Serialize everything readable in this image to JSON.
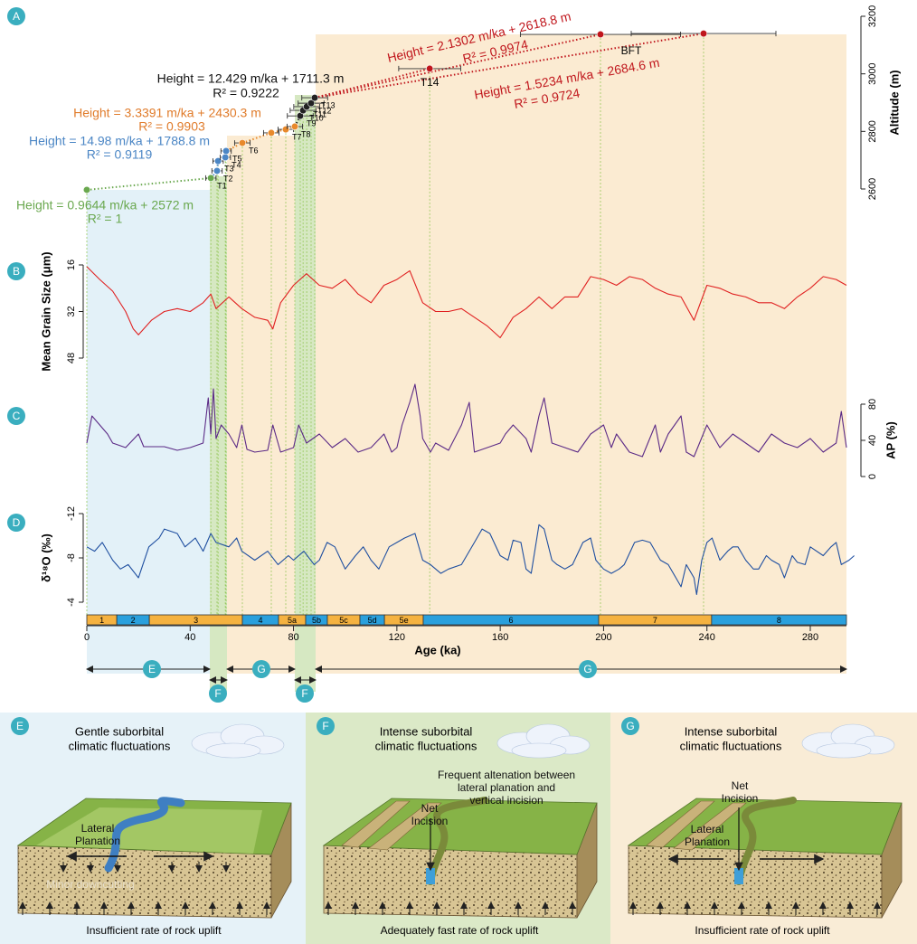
{
  "chart_data": [
    {
      "panel": "A",
      "type": "scatter",
      "xlim": [
        0,
        294
      ],
      "ylim": [
        2600,
        3200
      ],
      "yticks": [
        2600,
        2800,
        3000,
        3200
      ],
      "ylabel": "Altitude (m)",
      "y_axis_side": "right",
      "series": [
        {
          "color": "#6aa84f",
          "x": [
            0,
            48.0
          ],
          "values": [
            2597,
            2638
          ],
          "xerr": [
            null,
            2
          ],
          "labels": [
            null,
            "T1"
          ]
        },
        {
          "color": "#4b86c5",
          "x": [
            50.4,
            50.8,
            53.6,
            53.9
          ],
          "values": [
            2663,
            2697,
            2710,
            2732
          ],
          "xerr": [
            2,
            2,
            2,
            2
          ],
          "labels": [
            "T2",
            "T3",
            "T4",
            "T5"
          ]
        },
        {
          "color": "#e8892c",
          "x": [
            60.2,
            71.4,
            77.0,
            80.5
          ],
          "values": [
            2760,
            2795,
            2807,
            2817
          ],
          "xerr": [
            3,
            3,
            3,
            3
          ],
          "labels": [
            "T6",
            null,
            "T7",
            "T8"
          ]
        },
        {
          "color": "#222222",
          "x": [
            82.6,
            83.7,
            85.1,
            86.8,
            88.2
          ],
          "values": [
            2854,
            2873,
            2886,
            2898,
            2917
          ],
          "xerr": [
            5,
            5,
            5,
            5,
            5
          ],
          "labels": [
            "T9",
            "T10",
            "T11",
            "T12",
            "T13"
          ]
        },
        {
          "color": "#c0161c",
          "x": [
            132.7,
            198.8,
            238.7
          ],
          "values": [
            3018,
            3137,
            3140
          ],
          "xerr": [
            12,
            31,
            28
          ],
          "labels": [
            "T14",
            "BFT",
            null
          ]
        }
      ],
      "annotations": [
        {
          "text": "Height = 2.1302 m/ka + 2618.8 m",
          "r2": "R² = 0.9974",
          "color": "#c0161c"
        },
        {
          "text": "Height = 12.429 m/ka + 1711.3 m",
          "r2": "R² = 0.9222",
          "color": "#111111"
        },
        {
          "text": "Height = 1.5234 m/ka + 2684.6 m",
          "r2": "R² = 0.9724",
          "color": "#c0161c"
        },
        {
          "text": "Height = 3.3391 m/ka + 2430.3 m",
          "r2": "R² = 0.9903",
          "color": "#e07b2a"
        },
        {
          "text": "Height = 14.98 m/ka + 1788.8 m",
          "r2": "R² = 0.9119",
          "color": "#4b86c5"
        },
        {
          "text": "Height = 0.9644 m/ka + 2572 m",
          "r2": "R² = 1",
          "color": "#6aa84f"
        }
      ]
    },
    {
      "panel": "B",
      "type": "line",
      "xlim": [
        0,
        294
      ],
      "ylim": [
        16,
        48
      ],
      "y_inverted": true,
      "yticks": [
        16,
        32,
        48
      ],
      "ylabel": "Mean Grain Size (μm)",
      "y_axis_side": "left",
      "series": [
        {
          "color": "#e02020",
          "x": [
            0,
            5,
            10,
            15,
            18,
            20,
            25,
            30,
            35,
            40,
            45,
            48,
            50,
            55,
            60,
            65,
            70,
            72,
            75,
            80,
            85,
            90,
            95,
            100,
            105,
            110,
            115,
            120,
            125,
            130,
            135,
            140,
            145,
            150,
            155,
            160,
            165,
            170,
            175,
            180,
            185,
            190,
            195,
            200,
            205,
            210,
            215,
            220,
            225,
            230,
            235,
            240,
            245,
            250,
            255,
            260,
            265,
            270,
            275,
            280,
            285,
            290,
            294
          ],
          "values": [
            16.6,
            21,
            25,
            32,
            38,
            40,
            35,
            32,
            31,
            32,
            29,
            26,
            31,
            27,
            31,
            34,
            35,
            38,
            29,
            23,
            19,
            23,
            24,
            21,
            26,
            29,
            23,
            21,
            18,
            29,
            32,
            32,
            31,
            34,
            37,
            41,
            34,
            31,
            27,
            31,
            27,
            27,
            20,
            21,
            23,
            20,
            21,
            24,
            26,
            27,
            35,
            23,
            24,
            26,
            27,
            29,
            29,
            31,
            27,
            24,
            20,
            21,
            23
          ]
        }
      ]
    },
    {
      "panel": "C",
      "type": "line",
      "xlim": [
        0,
        294
      ],
      "ylim": [
        0,
        80
      ],
      "yticks": [
        0,
        40,
        80
      ],
      "ylabel": "AP (%)",
      "y_axis_side": "right",
      "series": [
        {
          "color": "#5b2a86",
          "x": [
            0,
            2,
            5,
            8,
            10,
            15,
            20,
            22,
            25,
            30,
            35,
            40,
            45,
            47,
            48,
            49,
            50,
            52,
            55,
            58,
            60,
            62,
            65,
            70,
            72,
            75,
            80,
            82,
            85,
            90,
            95,
            100,
            105,
            110,
            115,
            118,
            120,
            122,
            125,
            127,
            129,
            130,
            133,
            135,
            140,
            145,
            148,
            150,
            155,
            160,
            162,
            165,
            170,
            172,
            175,
            177,
            180,
            185,
            190,
            195,
            200,
            203,
            205,
            210,
            215,
            220,
            222,
            225,
            230,
            232,
            235,
            240,
            245,
            250,
            255,
            260,
            265,
            270,
            275,
            280,
            285,
            290,
            292,
            294
          ],
          "values": [
            37,
            67,
            57,
            47,
            37,
            32,
            47,
            33,
            33,
            33,
            29,
            32,
            37,
            87,
            47,
            97,
            42,
            57,
            47,
            32,
            57,
            30,
            27,
            29,
            57,
            27,
            32,
            57,
            37,
            47,
            32,
            42,
            27,
            32,
            47,
            27,
            32,
            57,
            82,
            102,
            67,
            42,
            27,
            37,
            29,
            57,
            82,
            27,
            32,
            37,
            47,
            57,
            42,
            27,
            67,
            87,
            37,
            32,
            27,
            47,
            57,
            32,
            47,
            27,
            22,
            57,
            27,
            47,
            67,
            27,
            22,
            57,
            32,
            47,
            37,
            27,
            47,
            37,
            32,
            42,
            27,
            37,
            72,
            32
          ]
        }
      ]
    },
    {
      "panel": "D",
      "type": "line",
      "xlim": [
        0,
        294
      ],
      "ylim": [
        -12,
        -4
      ],
      "y_inverted": true,
      "yticks": [
        -12,
        -8,
        -4
      ],
      "ylabel": "δ¹⁸O (‰)",
      "y_axis_side": "left",
      "series": [
        {
          "color": "#1f4fa0",
          "x": [
            0,
            3,
            6,
            10,
            13,
            16,
            20,
            24,
            28,
            30,
            35,
            38,
            42,
            45,
            48,
            50,
            55,
            58,
            60,
            65,
            70,
            74,
            78,
            80,
            84,
            88,
            90,
            93,
            96,
            100,
            104,
            107,
            110,
            113,
            117,
            120,
            123,
            127,
            130,
            133,
            137,
            140,
            145,
            150,
            153,
            156,
            160,
            163,
            165,
            168,
            170,
            172,
            175,
            177,
            180,
            182,
            185,
            188,
            192,
            195,
            197,
            200,
            203,
            206,
            208,
            212,
            215,
            218,
            222,
            225,
            228,
            230,
            232,
            235,
            236,
            238,
            240,
            242,
            245,
            248,
            250,
            252,
            255,
            258,
            260,
            263,
            265,
            268,
            270,
            273,
            275,
            278,
            280,
            285,
            288,
            290,
            292,
            295,
            297
          ],
          "values": [
            -9.0,
            -8.6,
            -9.4,
            -7.8,
            -7.0,
            -7.4,
            -6.2,
            -9.0,
            -9.8,
            -10.6,
            -10.2,
            -9.0,
            -9.8,
            -8.6,
            -10.2,
            -9.4,
            -9.0,
            -9.8,
            -8.6,
            -7.8,
            -8.6,
            -7.4,
            -8.2,
            -7.8,
            -8.6,
            -7.4,
            -7.8,
            -9.4,
            -9.0,
            -7.0,
            -8.2,
            -9.0,
            -7.8,
            -7.0,
            -9.0,
            -9.4,
            -9.8,
            -10.2,
            -7.8,
            -7.4,
            -6.6,
            -7.0,
            -7.4,
            -9.4,
            -10.6,
            -10.2,
            -8.2,
            -7.8,
            -9.6,
            -9.4,
            -7.0,
            -6.6,
            -11.0,
            -10.6,
            -7.8,
            -7.4,
            -7.0,
            -7.4,
            -9.4,
            -9.8,
            -7.8,
            -7.0,
            -6.6,
            -7.0,
            -7.4,
            -9.4,
            -9.6,
            -9.4,
            -7.8,
            -7.4,
            -6.2,
            -5.4,
            -7.4,
            -6.2,
            -4.7,
            -7.8,
            -9.4,
            -9.8,
            -7.8,
            -8.6,
            -9.0,
            -9.0,
            -7.8,
            -7.0,
            -7.0,
            -8.2,
            -7.8,
            -7.4,
            -6.2,
            -8.2,
            -7.6,
            -7.4,
            -9.0,
            -8.2,
            -9.0,
            -9.4,
            -7.4,
            -7.8,
            -8.2
          ]
        }
      ]
    },
    {
      "type": "timeline",
      "xlim": [
        0,
        294
      ],
      "xticks": [
        0,
        40,
        80,
        120,
        160,
        200,
        240,
        280
      ],
      "xlabel": "Age (ka)",
      "bounds": [
        0,
        11.6,
        24.2,
        60.2,
        74.2,
        84.7,
        93.1,
        105.7,
        115.2,
        130.2,
        198.1,
        241.8,
        294
      ],
      "labels": [
        "1",
        "2",
        "3",
        "4",
        "5a",
        "5b",
        "5c",
        "5d",
        "5e",
        "6",
        "7",
        "8"
      ],
      "colors": [
        "#f5b240",
        "#2aa0dd",
        "#f5b240",
        "#2aa0dd",
        "#f5b240",
        "#2aa0dd",
        "#f5b240",
        "#2aa0dd",
        "#f5b240",
        "#2aa0dd",
        "#f5b240",
        "#2aa0dd"
      ]
    }
  ],
  "phases": [
    "E",
    "F",
    "G",
    "F",
    "G"
  ],
  "schematics": [
    {
      "label": "E",
      "heading": [
        "Gentle suborbital",
        "climatic fluctuations"
      ],
      "notes": [
        [
          "Lateral",
          "Planation"
        ],
        [
          "Minor downcutting"
        ]
      ],
      "footer": "Insufficient rate of rock uplift"
    },
    {
      "label": "F",
      "heading": [
        "Intense suborbital",
        "climatic fluctuations"
      ],
      "notes": [
        [
          "Frequent altenation between",
          "lateral planation and",
          "vertical incision"
        ],
        [
          "Net",
          "Incision"
        ]
      ],
      "footer": "Adequately fast rate of rock uplift"
    },
    {
      "label": "G",
      "heading": [
        "Intense suborbital",
        "climatic fluctuations"
      ],
      "notes": [
        [
          "Net",
          "Incision"
        ],
        [
          "Lateral",
          "Planation"
        ]
      ],
      "footer": "Insufficient rate of rock uplift"
    }
  ]
}
